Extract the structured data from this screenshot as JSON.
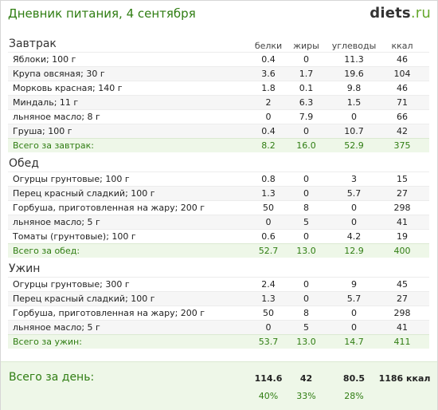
{
  "header": {
    "title": "Дневник питания, 4 сентября",
    "logo_main": "diets",
    "logo_tld": ".ru"
  },
  "columns": {
    "protein": "белки",
    "fat": "жиры",
    "carbs": "углеводы",
    "kcal": "ккал"
  },
  "breakfast": {
    "title": "Завтрак",
    "rows": [
      {
        "name": "Яблоки; 100 г",
        "p": "0.4",
        "f": "0",
        "c": "11.3",
        "k": "46"
      },
      {
        "name": "Крупа овсяная; 30 г",
        "p": "3.6",
        "f": "1.7",
        "c": "19.6",
        "k": "104"
      },
      {
        "name": "Морковь красная; 140 г",
        "p": "1.8",
        "f": "0.1",
        "c": "9.8",
        "k": "46"
      },
      {
        "name": "Миндаль; 11 г",
        "p": "2",
        "f": "6.3",
        "c": "1.5",
        "k": "71"
      },
      {
        "name": "льняное масло; 8 г",
        "p": "0",
        "f": "7.9",
        "c": "0",
        "k": "66"
      },
      {
        "name": "Груша; 100 г",
        "p": "0.4",
        "f": "0",
        "c": "10.7",
        "k": "42"
      }
    ],
    "total": {
      "name": "Всего за завтрак:",
      "p": "8.2",
      "f": "16.0",
      "c": "52.9",
      "k": "375"
    }
  },
  "lunch": {
    "title": "Обед",
    "rows": [
      {
        "name": "Огурцы грунтовые; 100 г",
        "p": "0.8",
        "f": "0",
        "c": "3",
        "k": "15"
      },
      {
        "name": "Перец красный сладкий; 100 г",
        "p": "1.3",
        "f": "0",
        "c": "5.7",
        "k": "27"
      },
      {
        "name": "Горбуша, приготовленная на жару; 200 г",
        "p": "50",
        "f": "8",
        "c": "0",
        "k": "298"
      },
      {
        "name": "льняное масло; 5 г",
        "p": "0",
        "f": "5",
        "c": "0",
        "k": "41"
      },
      {
        "name": "Томаты (грунтовые); 100 г",
        "p": "0.6",
        "f": "0",
        "c": "4.2",
        "k": "19"
      }
    ],
    "total": {
      "name": "Всего за обед:",
      "p": "52.7",
      "f": "13.0",
      "c": "12.9",
      "k": "400"
    }
  },
  "dinner": {
    "title": "Ужин",
    "rows": [
      {
        "name": "Огурцы грунтовые; 300 г",
        "p": "2.4",
        "f": "0",
        "c": "9",
        "k": "45"
      },
      {
        "name": "Перец красный сладкий; 100 г",
        "p": "1.3",
        "f": "0",
        "c": "5.7",
        "k": "27"
      },
      {
        "name": "Горбуша, приготовленная на жару; 200 г",
        "p": "50",
        "f": "8",
        "c": "0",
        "k": "298"
      },
      {
        "name": "льняное масло; 5 г",
        "p": "0",
        "f": "5",
        "c": "0",
        "k": "41"
      }
    ],
    "total": {
      "name": "Всего за ужин:",
      "p": "53.7",
      "f": "13.0",
      "c": "14.7",
      "k": "411"
    }
  },
  "day": {
    "label": "Всего за день:",
    "p": "114.6",
    "f": "42",
    "c": "80.5",
    "k": "1186 ккал",
    "p_pct": "40%",
    "f_pct": "33%",
    "c_pct": "28%"
  },
  "colors": {
    "accent_green": "#2f7d12",
    "total_bg": "#eef7e8"
  }
}
